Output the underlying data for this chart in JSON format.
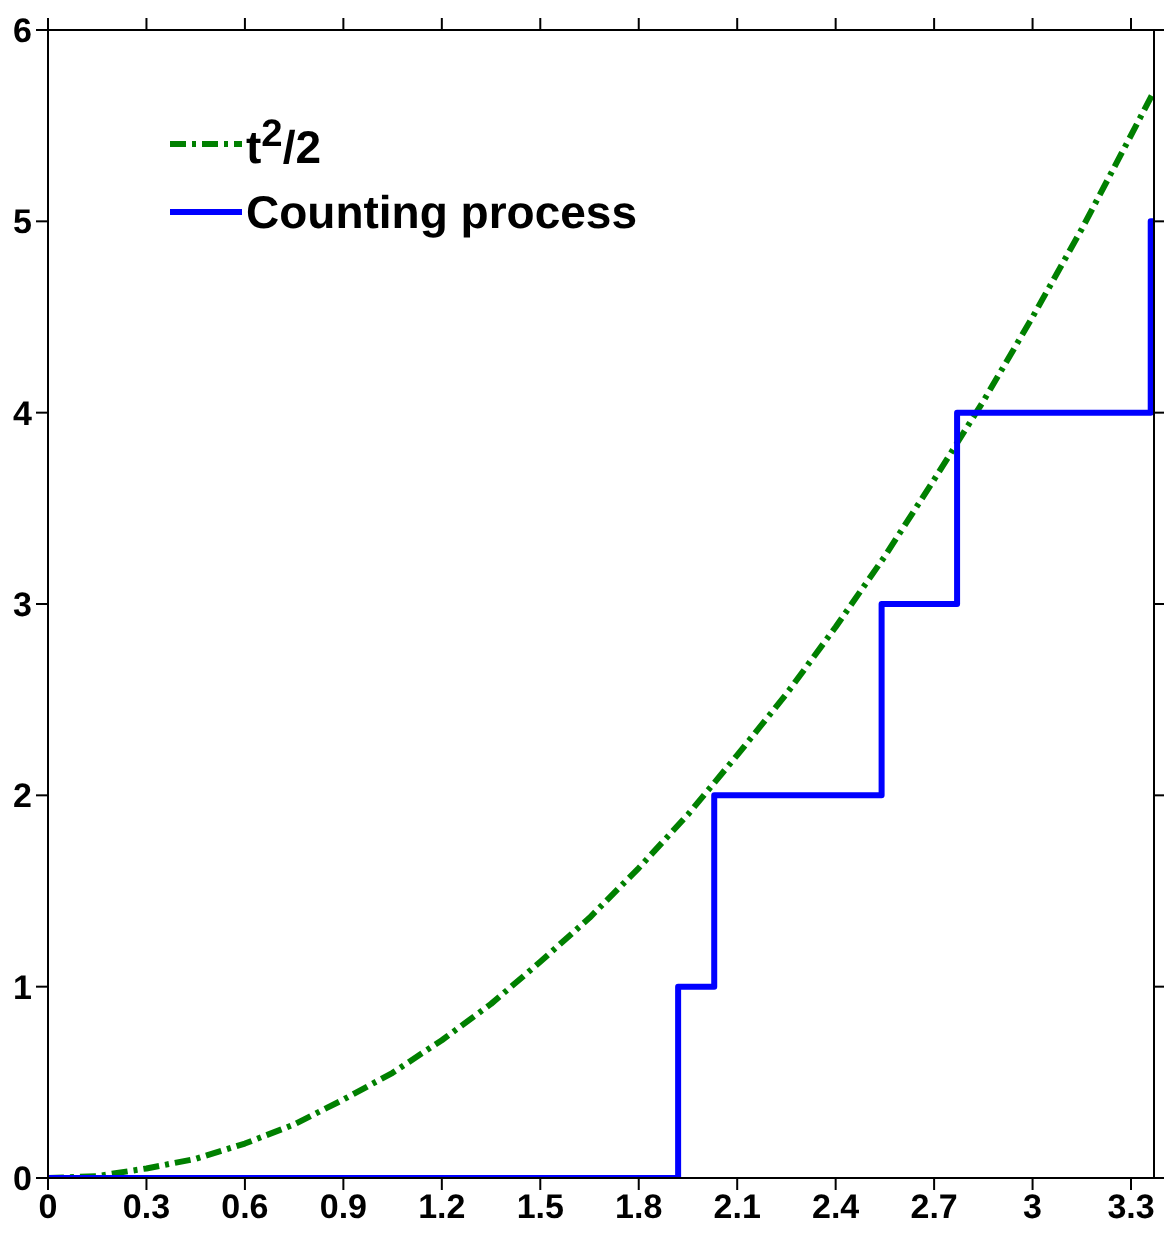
{
  "chart_data": {
    "type": "line",
    "xlim": [
      0,
      3.37
    ],
    "xticks": [
      0,
      0.3,
      0.6,
      0.9,
      1.2,
      1.5,
      1.8,
      2.1,
      2.4,
      2.7,
      3,
      3.3
    ],
    "ylim": [
      0,
      6
    ],
    "yticks": [
      0,
      1,
      2,
      3,
      4,
      5,
      6
    ],
    "legend": "top left",
    "marker": "none",
    "series": [
      {
        "name": "t$^{2}$/2",
        "color": "#008000",
        "line_style": "dashed",
        "x": [
          0,
          0.15,
          0.3,
          0.45,
          0.6,
          0.75,
          0.9,
          1.05,
          1.2,
          1.35,
          1.5,
          1.65,
          1.8,
          1.95,
          2.1,
          2.25,
          2.4,
          2.55,
          2.7,
          2.85,
          3,
          3.15,
          3.3,
          3.37
        ],
        "values": [
          0,
          0.01,
          0.05,
          0.1,
          0.18,
          0.28,
          0.41,
          0.55,
          0.72,
          0.91,
          1.13,
          1.36,
          1.62,
          1.9,
          2.21,
          2.53,
          2.88,
          3.25,
          3.65,
          4.06,
          4.5,
          4.96,
          5.45,
          5.68
        ]
      },
      {
        "name": "Counting process",
        "color": "#0000ff",
        "type": "step",
        "line_style": "solid",
        "x": [
          0,
          1.92,
          2.03,
          2.54,
          2.77,
          3.36,
          3.37
        ],
        "values": [
          0,
          1,
          2,
          3,
          4,
          5,
          5
        ]
      }
    ]
  }
}
